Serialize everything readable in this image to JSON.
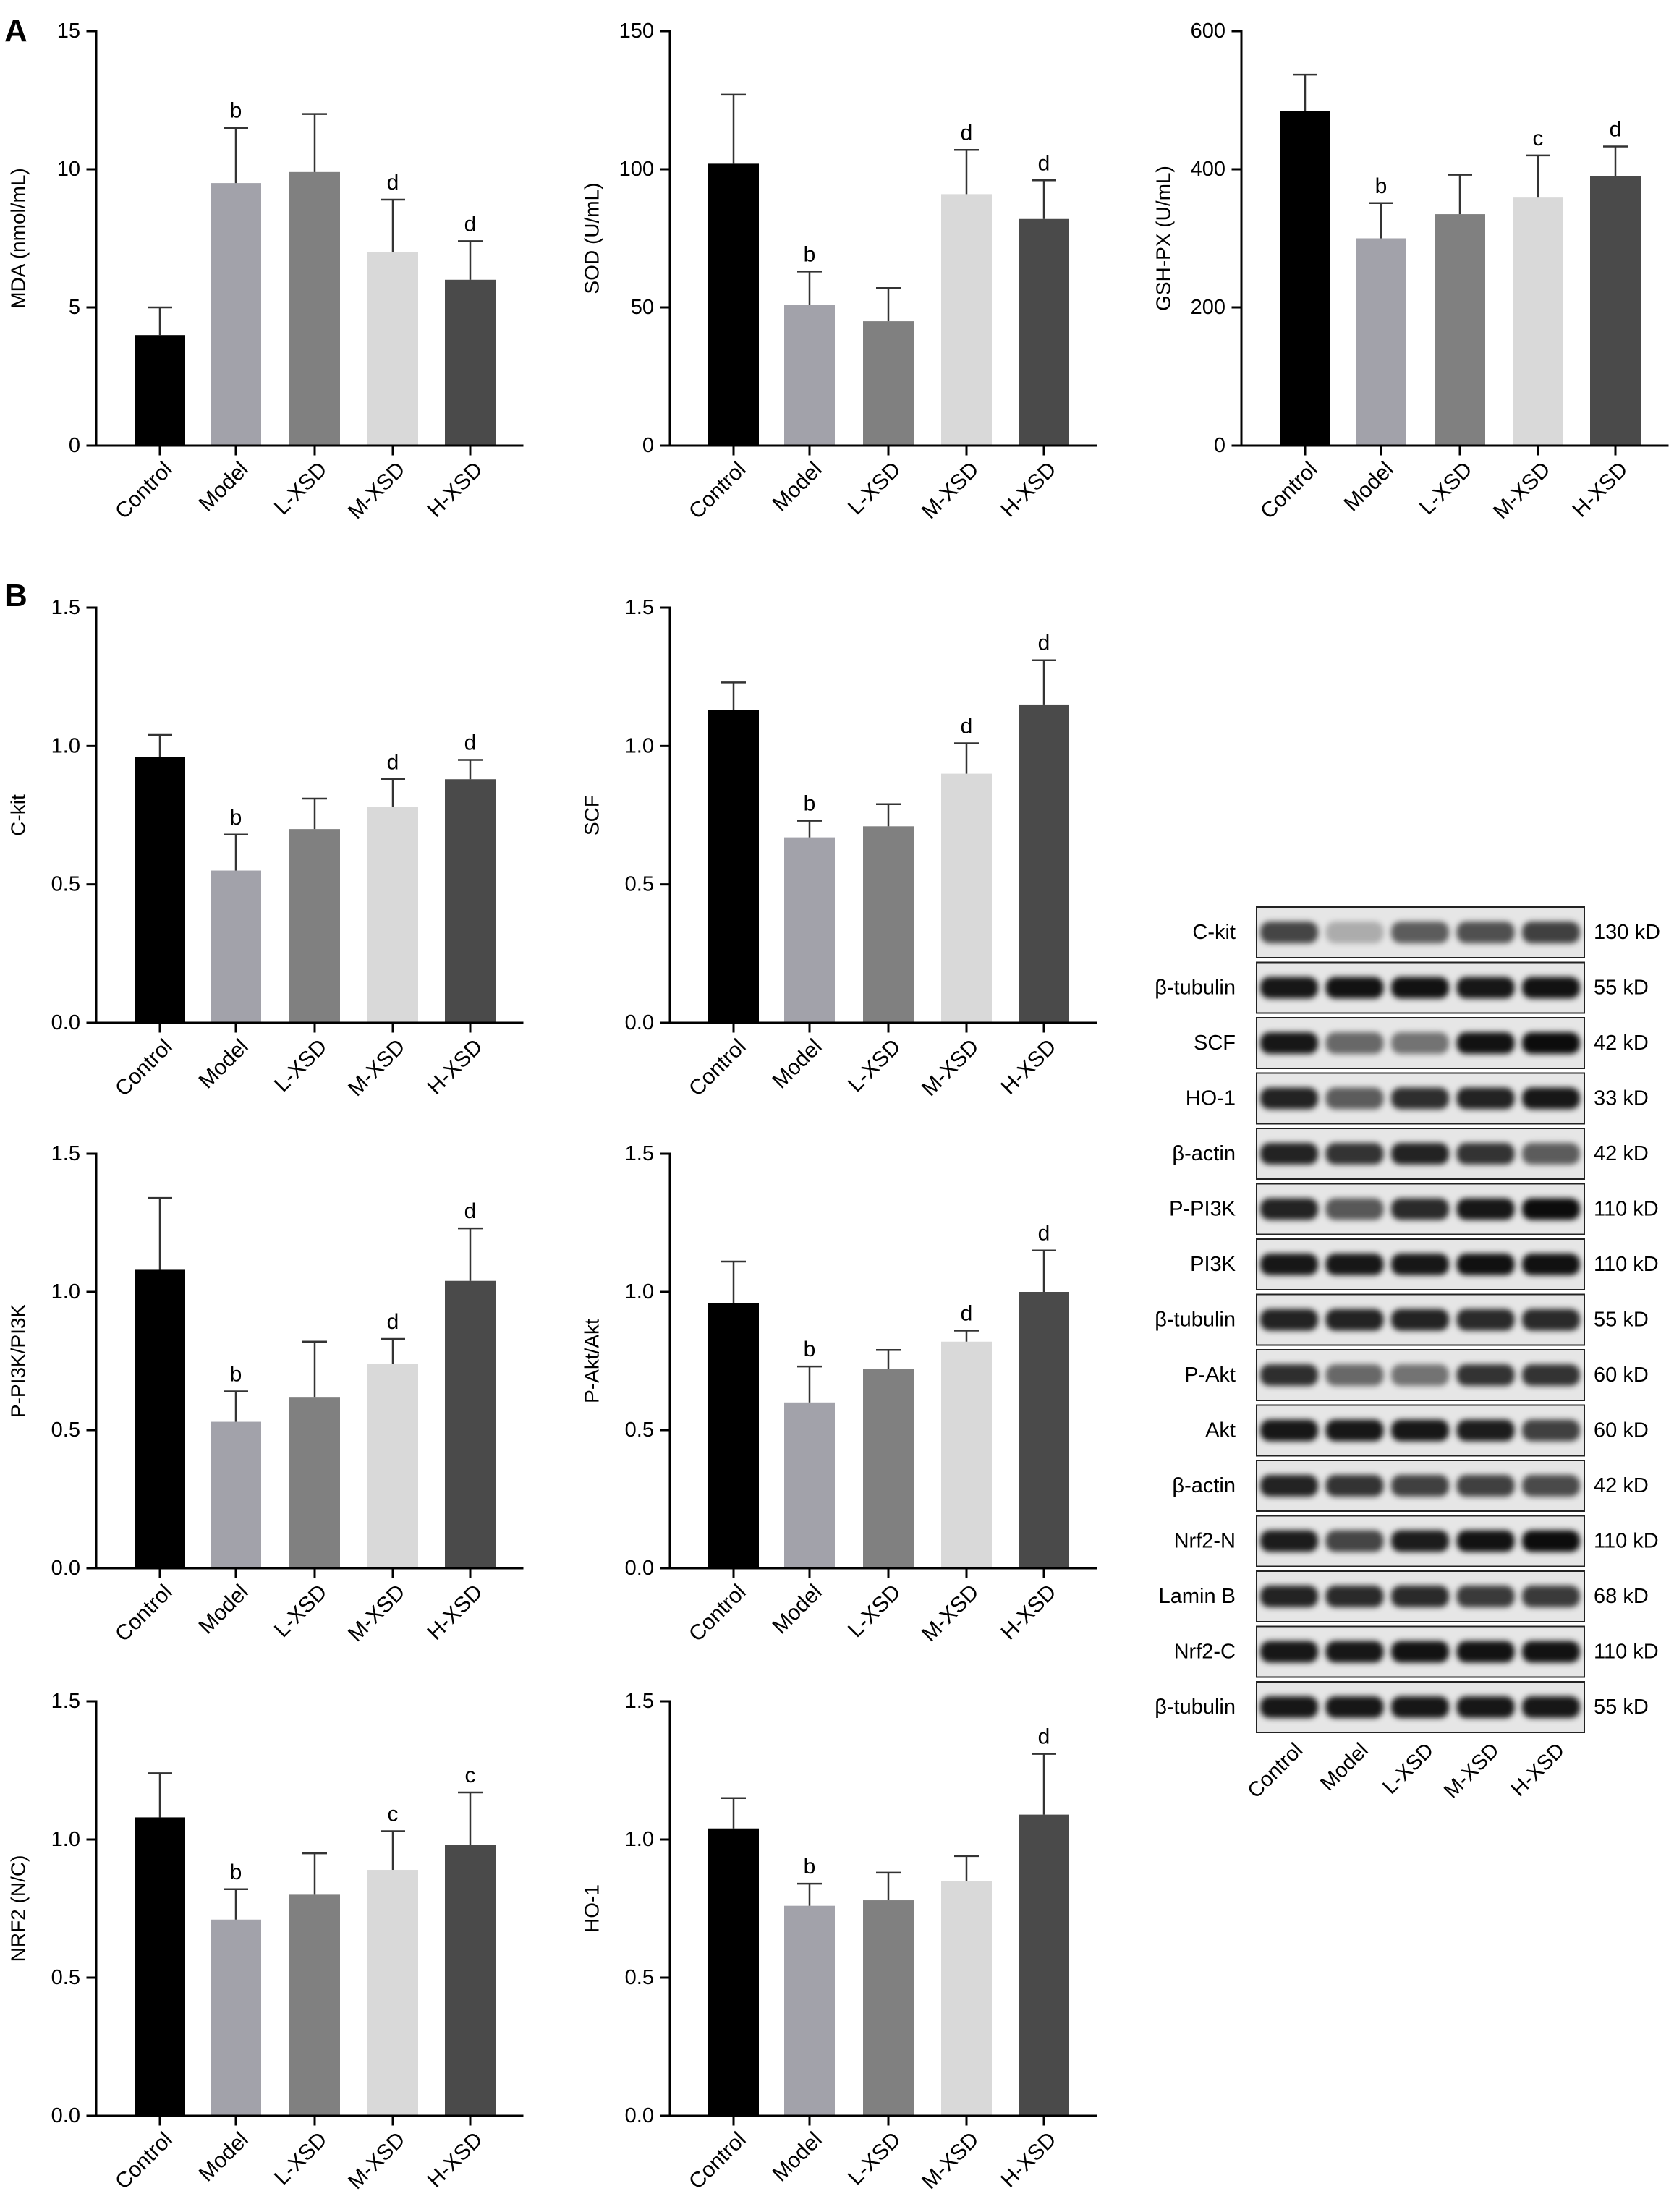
{
  "panel_labels": {
    "A": "A",
    "B": "B"
  },
  "bar_colors": [
    "#000000",
    "#a2a2aa",
    "#808080",
    "#d9d9d9",
    "#4a4a4a"
  ],
  "chart_data": [
    {
      "type": "bar",
      "categories": [
        "Control",
        "Model",
        "L-XSD",
        "M-XSD",
        "H-XSD"
      ],
      "values": [
        4.0,
        9.5,
        9.9,
        7.0,
        6.0
      ],
      "error": [
        1.0,
        2.0,
        2.1,
        1.9,
        1.4
      ],
      "significance": [
        "",
        "b",
        "",
        "d",
        "d"
      ],
      "ylabel": "MDA (nmol/mL)",
      "ylim": [
        0,
        15
      ],
      "yticks": [
        0,
        5,
        10,
        15
      ],
      "ytick_labels": [
        "0",
        "5",
        "10",
        "15"
      ],
      "grid": false
    },
    {
      "type": "bar",
      "categories": [
        "Control",
        "Model",
        "L-XSD",
        "M-XSD",
        "H-XSD"
      ],
      "values": [
        102,
        51,
        45,
        91,
        82
      ],
      "error": [
        25,
        12,
        12,
        16,
        14
      ],
      "significance": [
        "",
        "b",
        "",
        "d",
        "d"
      ],
      "ylabel": "SOD (U/mL)",
      "ylim": [
        0,
        150
      ],
      "yticks": [
        0,
        50,
        100,
        150
      ],
      "ytick_labels": [
        "0",
        "50",
        "100",
        "150"
      ],
      "grid": false
    },
    {
      "type": "bar",
      "categories": [
        "Control",
        "Model",
        "L-XSD",
        "M-XSD",
        "H-XSD"
      ],
      "values": [
        484,
        300,
        335,
        359,
        390
      ],
      "error": [
        53,
        51,
        57,
        61,
        43
      ],
      "significance": [
        "",
        "b",
        "",
        "c",
        "d"
      ],
      "ylabel": "GSH-PX (U/mL)",
      "ylim": [
        0,
        600
      ],
      "yticks": [
        0,
        200,
        400,
        600
      ],
      "ytick_labels": [
        "0",
        "200",
        "400",
        "600"
      ],
      "grid": false
    },
    {
      "type": "bar",
      "categories": [
        "Control",
        "Model",
        "L-XSD",
        "M-XSD",
        "H-XSD"
      ],
      "values": [
        0.96,
        0.55,
        0.7,
        0.78,
        0.88
      ],
      "error": [
        0.08,
        0.13,
        0.11,
        0.1,
        0.07
      ],
      "significance": [
        "",
        "b",
        "",
        "d",
        "d"
      ],
      "ylabel": "C-kit",
      "ylim": [
        0,
        1.5
      ],
      "yticks": [
        0,
        0.5,
        1.0,
        1.5
      ],
      "ytick_labels": [
        "0.0",
        "0.5",
        "1.0",
        "1.5"
      ],
      "grid": false
    },
    {
      "type": "bar",
      "categories": [
        "Control",
        "Model",
        "L-XSD",
        "M-XSD",
        "H-XSD"
      ],
      "values": [
        1.13,
        0.67,
        0.71,
        0.9,
        1.15
      ],
      "error": [
        0.1,
        0.06,
        0.08,
        0.11,
        0.16
      ],
      "significance": [
        "",
        "b",
        "",
        "d",
        "d"
      ],
      "ylabel": "SCF",
      "ylim": [
        0,
        1.5
      ],
      "yticks": [
        0,
        0.5,
        1.0,
        1.5
      ],
      "ytick_labels": [
        "0.0",
        "0.5",
        "1.0",
        "1.5"
      ],
      "grid": false
    },
    {
      "type": "bar",
      "categories": [
        "Control",
        "Model",
        "L-XSD",
        "M-XSD",
        "H-XSD"
      ],
      "values": [
        1.08,
        0.53,
        0.62,
        0.74,
        1.04
      ],
      "error": [
        0.26,
        0.11,
        0.2,
        0.09,
        0.19
      ],
      "significance": [
        "",
        "b",
        "",
        "d",
        "d"
      ],
      "ylabel": "P-PI3K/PI3K",
      "ylim": [
        0,
        1.5
      ],
      "yticks": [
        0,
        0.5,
        1.0,
        1.5
      ],
      "ytick_labels": [
        "0.0",
        "0.5",
        "1.0",
        "1.5"
      ],
      "grid": false
    },
    {
      "type": "bar",
      "categories": [
        "Control",
        "Model",
        "L-XSD",
        "M-XSD",
        "H-XSD"
      ],
      "values": [
        0.96,
        0.6,
        0.72,
        0.82,
        1.0
      ],
      "error": [
        0.15,
        0.13,
        0.07,
        0.04,
        0.15
      ],
      "significance": [
        "",
        "b",
        "",
        "d",
        "d"
      ],
      "ylabel": "P-Akt/Akt",
      "ylim": [
        0,
        1.5
      ],
      "yticks": [
        0,
        0.5,
        1.0,
        1.5
      ],
      "ytick_labels": [
        "0.0",
        "0.5",
        "1.0",
        "1.5"
      ],
      "grid": false
    },
    {
      "type": "bar",
      "categories": [
        "Control",
        "Model",
        "L-XSD",
        "M-XSD",
        "H-XSD"
      ],
      "values": [
        1.08,
        0.71,
        0.8,
        0.89,
        0.98
      ],
      "error": [
        0.16,
        0.11,
        0.15,
        0.14,
        0.19
      ],
      "significance": [
        "",
        "b",
        "",
        "c",
        "c"
      ],
      "ylabel": "NRF2 (N/C)",
      "ylim": [
        0,
        1.5
      ],
      "yticks": [
        0,
        0.5,
        1.0,
        1.5
      ],
      "ytick_labels": [
        "0.0",
        "0.5",
        "1.0",
        "1.5"
      ],
      "grid": false
    },
    {
      "type": "bar",
      "categories": [
        "Control",
        "Model",
        "L-XSD",
        "M-XSD",
        "H-XSD"
      ],
      "values": [
        1.04,
        0.76,
        0.78,
        0.85,
        1.09
      ],
      "error": [
        0.11,
        0.08,
        0.1,
        0.09,
        0.22
      ],
      "significance": [
        "",
        "b",
        "",
        "",
        "d"
      ],
      "ylabel": "HO-1",
      "ylim": [
        0,
        1.5
      ],
      "yticks": [
        0,
        0.5,
        1.0,
        1.5
      ],
      "ytick_labels": [
        "0.0",
        "0.5",
        "1.0",
        "1.5"
      ],
      "grid": false
    }
  ],
  "western_blot": {
    "lanes": [
      "Control",
      "Model",
      "L-XSD",
      "M-XSD",
      "H-XSD"
    ],
    "rows": [
      {
        "protein": "C-kit",
        "size": "130 kD",
        "band_intensity": [
          0.7,
          0.25,
          0.6,
          0.65,
          0.72
        ]
      },
      {
        "protein": "β-tubulin",
        "size": "55 kD",
        "band_intensity": [
          0.9,
          0.92,
          0.92,
          0.9,
          0.92
        ]
      },
      {
        "protein": "SCF",
        "size": "42 kD",
        "band_intensity": [
          0.9,
          0.55,
          0.5,
          0.92,
          0.95
        ]
      },
      {
        "protein": "HO-1",
        "size": "33 kD",
        "band_intensity": [
          0.85,
          0.6,
          0.8,
          0.85,
          0.9
        ]
      },
      {
        "protein": "β-actin",
        "size": "42 kD",
        "band_intensity": [
          0.85,
          0.78,
          0.85,
          0.78,
          0.6
        ]
      },
      {
        "protein": "P-PI3K",
        "size": "110 kD",
        "band_intensity": [
          0.85,
          0.62,
          0.82,
          0.9,
          0.95
        ]
      },
      {
        "protein": "PI3K",
        "size": "110 kD",
        "band_intensity": [
          0.9,
          0.9,
          0.9,
          0.93,
          0.93
        ]
      },
      {
        "protein": "β-tubulin",
        "size": "55 kD",
        "band_intensity": [
          0.85,
          0.85,
          0.85,
          0.82,
          0.82
        ]
      },
      {
        "protein": "P-Akt",
        "size": "60 kD",
        "band_intensity": [
          0.8,
          0.55,
          0.5,
          0.78,
          0.78
        ]
      },
      {
        "protein": "Akt",
        "size": "60 kD",
        "band_intensity": [
          0.9,
          0.9,
          0.9,
          0.88,
          0.72
        ]
      },
      {
        "protein": "β-actin",
        "size": "42 kD",
        "band_intensity": [
          0.85,
          0.78,
          0.72,
          0.72,
          0.68
        ]
      },
      {
        "protein": "Nrf2-N",
        "size": "110 kD",
        "band_intensity": [
          0.88,
          0.7,
          0.88,
          0.92,
          0.95
        ]
      },
      {
        "protein": "Lamin B",
        "size": "68 kD",
        "band_intensity": [
          0.85,
          0.82,
          0.82,
          0.75,
          0.75
        ]
      },
      {
        "protein": "Nrf2-C",
        "size": "110 kD",
        "band_intensity": [
          0.9,
          0.9,
          0.92,
          0.92,
          0.92
        ]
      },
      {
        "protein": "β-tubulin",
        "size": "55 kD",
        "band_intensity": [
          0.9,
          0.9,
          0.9,
          0.9,
          0.9
        ]
      }
    ]
  }
}
